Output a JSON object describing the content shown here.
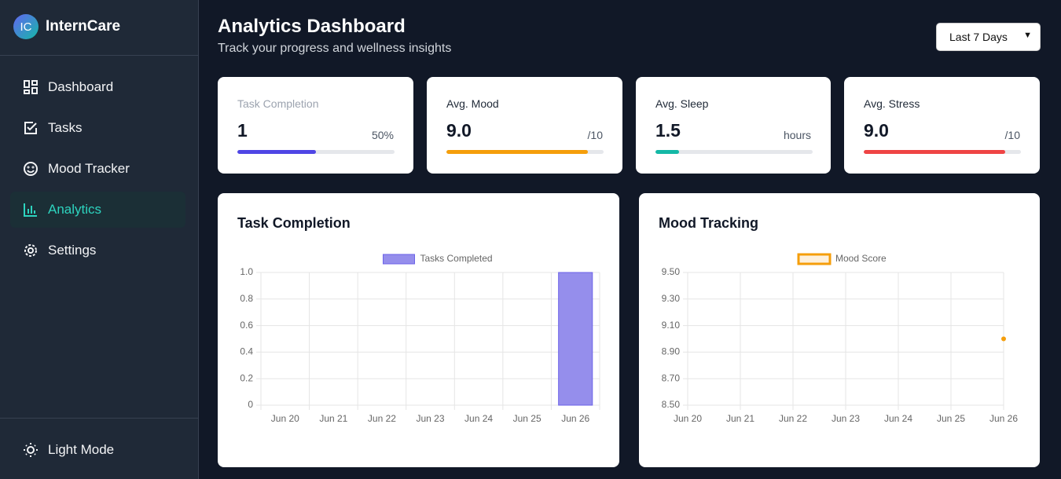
{
  "brand": {
    "logo": "IC",
    "name": "InternCare"
  },
  "nav": [
    "Dashboard",
    "Tasks",
    "Mood Tracker",
    "Analytics",
    "Settings"
  ],
  "theme_toggle": "Light Mode",
  "header": {
    "title": "Analytics Dashboard",
    "subtitle": "Track your progress and wellness insights",
    "range": "Last 7 Days"
  },
  "stats": [
    {
      "label": "Task Completion",
      "value": "1",
      "unit": "50%",
      "progress": 50,
      "color": "#4f46e5"
    },
    {
      "label": "Avg. Mood",
      "value": "9.0",
      "unit": "/10",
      "progress": 90,
      "color": "#f59e0b"
    },
    {
      "label": "Avg. Sleep",
      "value": "1.5",
      "unit": "hours",
      "progress": 15,
      "color": "#14b8a6"
    },
    {
      "label": "Avg. Stress",
      "value": "9.0",
      "unit": "/10",
      "progress": 90,
      "color": "#ef4444"
    }
  ],
  "chart_data": [
    {
      "type": "bar",
      "title": "Task Completion",
      "categories": [
        "Jun 20",
        "Jun 21",
        "Jun 22",
        "Jun 23",
        "Jun 24",
        "Jun 25",
        "Jun 26"
      ],
      "series": [
        {
          "name": "Tasks Completed",
          "color": "#958eec",
          "values": [
            0,
            0,
            0,
            0,
            0,
            0,
            1
          ]
        }
      ],
      "ylim": [
        0,
        1
      ],
      "yticks": [
        0,
        0.2,
        0.4,
        0.6,
        0.8,
        {
          "value": 1,
          "label": "1.0"
        }
      ],
      "grid": true,
      "legend": "top"
    },
    {
      "type": "line",
      "title": "Mood Tracking",
      "categories": [
        "Jun 20",
        "Jun 21",
        "Jun 22",
        "Jun 23",
        "Jun 24",
        "Jun 25",
        "Jun 26"
      ],
      "series": [
        {
          "name": "Mood Score",
          "color": "#f59e0b",
          "values": [
            null,
            null,
            null,
            null,
            null,
            null,
            9
          ]
        }
      ],
      "ylim": [
        8.5,
        9.5
      ],
      "yticks": [
        {
          "value": 8.5,
          "label": "8.50"
        },
        {
          "value": 8.7,
          "label": "8.70"
        },
        {
          "value": 8.9,
          "label": "8.90"
        },
        {
          "value": 9.1,
          "label": "9.10"
        },
        {
          "value": 9.3,
          "label": "9.30"
        },
        {
          "value": 9.5,
          "label": "9.50"
        }
      ],
      "grid": true,
      "legend": "top"
    }
  ]
}
